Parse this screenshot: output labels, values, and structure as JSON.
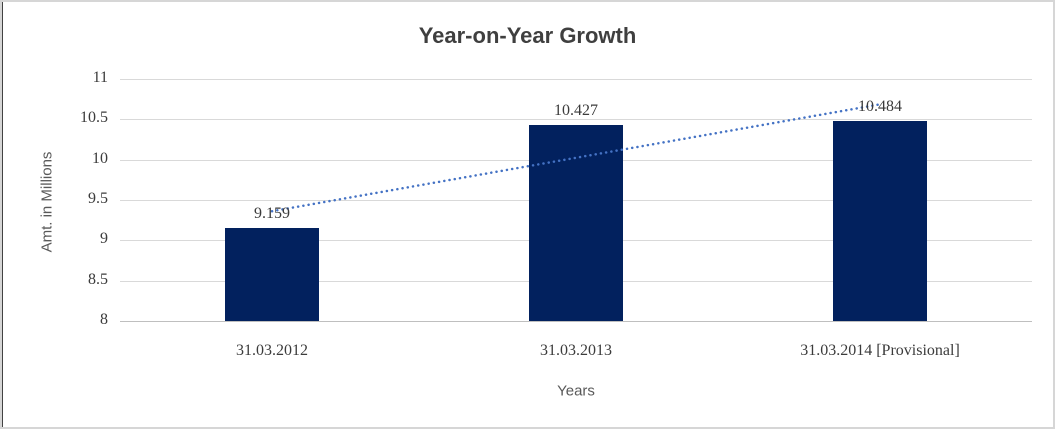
{
  "chart_data": {
    "type": "bar",
    "title": "Year-on-Year Growth",
    "xlabel": "Years",
    "ylabel": "Amt. in Millions",
    "categories": [
      "31.03.2012",
      "31.03.2013",
      "31.03.2014 [Provisional]"
    ],
    "values": [
      9.159,
      10.427,
      10.484
    ],
    "data_labels": [
      "9.159",
      "10.427",
      "10.484"
    ],
    "ylim": [
      8,
      11
    ],
    "ytick_step": 0.5,
    "yticks": [
      "8",
      "8.5",
      "9",
      "9.5",
      "10",
      "10.5",
      "11"
    ],
    "grid": true,
    "legend": "none",
    "trendline": {
      "type": "linear",
      "style": "dotted"
    },
    "colors": {
      "bar": "#02215e",
      "trendline": "#4472c4",
      "gridline": "#d9d9d9",
      "axis_line": "#bfbfbf",
      "tick_label": "#3b3b3b",
      "axis_title": "#595959",
      "title": "#3f3f3f"
    }
  }
}
